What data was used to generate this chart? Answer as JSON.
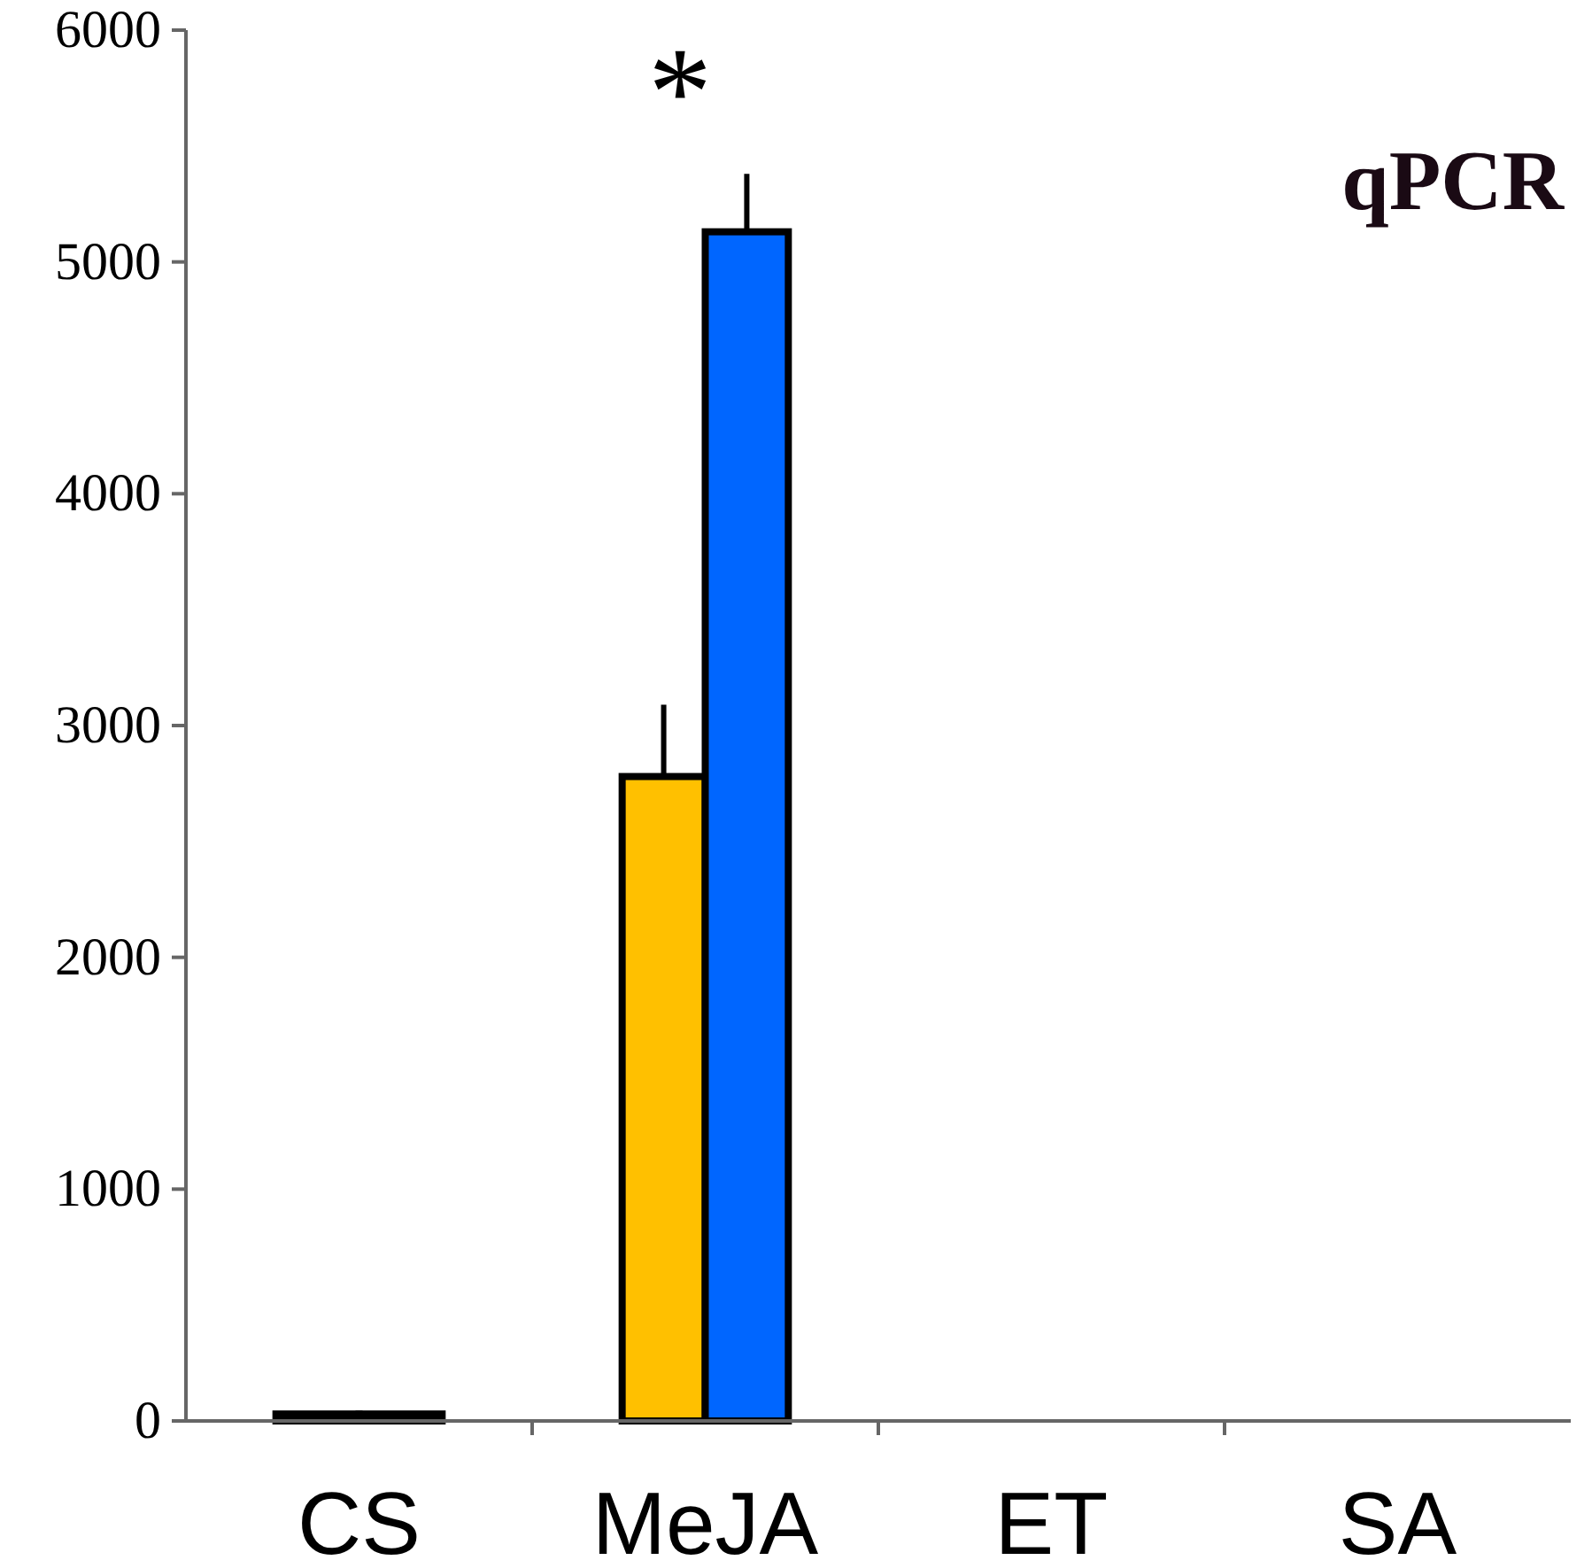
{
  "chart_data": {
    "type": "bar",
    "title": "qPCR",
    "categories": [
      "CS",
      "MeJA",
      "ET",
      "SA"
    ],
    "series": [
      {
        "color": "#ffc000",
        "values": [
          30,
          2780,
          null,
          null
        ],
        "errors": [
          null,
          310,
          null,
          null
        ]
      },
      {
        "color": "#0066ff",
        "values": [
          30,
          5130,
          null,
          null
        ],
        "errors": [
          null,
          250,
          null,
          null
        ]
      }
    ],
    "ylim": [
      0,
      6000
    ],
    "yticks": [
      0,
      1000,
      2000,
      3000,
      4000,
      5000,
      6000
    ],
    "grid": false,
    "annotations": [
      "*"
    ]
  }
}
